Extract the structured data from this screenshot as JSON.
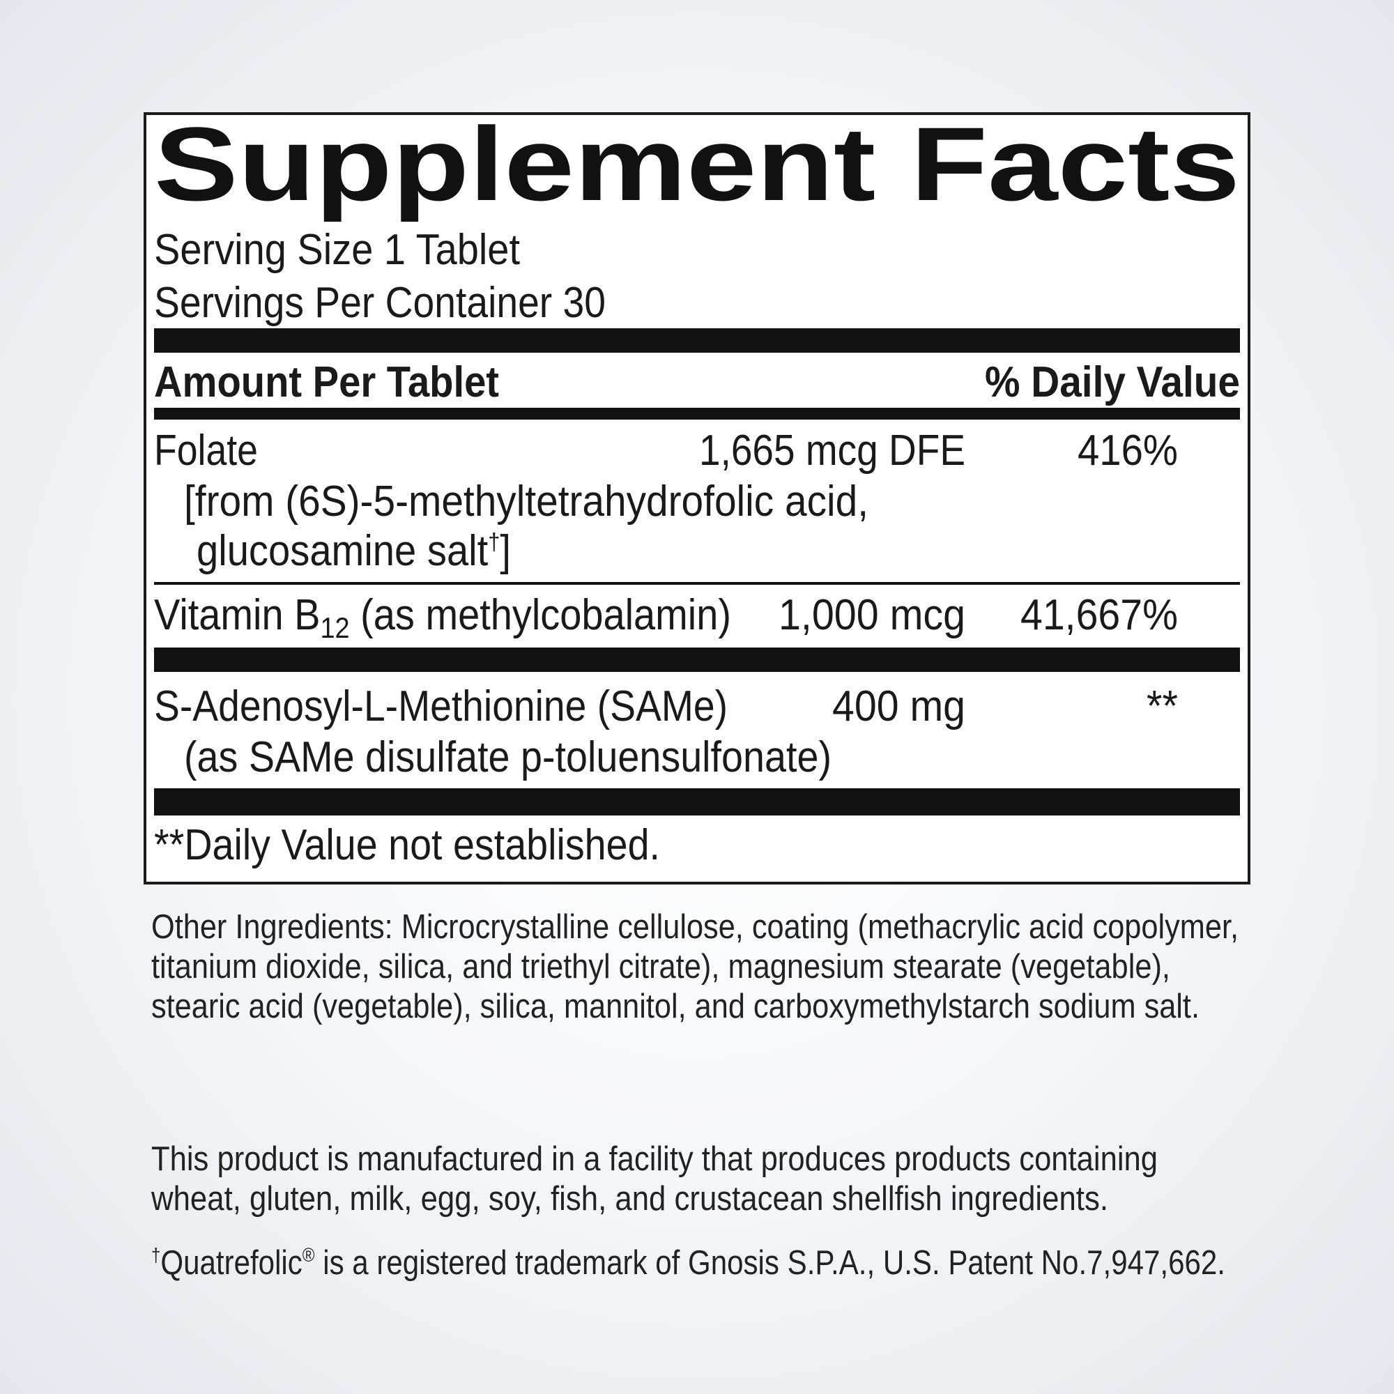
{
  "panel": {
    "title": "Supplement Facts",
    "serving_size": "Serving Size 1 Tablet",
    "servings_per_container": "Servings Per Container 30",
    "header_amount": "Amount Per Tablet",
    "header_dv": "% Daily Value",
    "rows": [
      {
        "name": "Folate",
        "detail_line1": "[from (6S)-5-methyltetrahydrofolic acid,",
        "detail_line2": "glucosamine salt",
        "detail_line2_mark": "†",
        "detail_line2_end": "]",
        "amount": "1,665 mcg DFE",
        "dv": "416%"
      },
      {
        "name_pre": "Vitamin B",
        "name_sub": "12",
        "name_post": " (as methylcobalamin)",
        "amount": "1,000 mcg",
        "dv": "41,667%"
      },
      {
        "name": "S-Adenosyl-L-Methionine (SAMe)",
        "detail_line1": "(as SAMe disulfate p-toluensulfonate)",
        "amount": "400 mg",
        "dv": "**"
      }
    ],
    "footnote": "**Daily Value not established."
  },
  "other_ingredients": [
    "Other Ingredients: Microcrystalline cellulose, coating (methacrylic acid copolymer,",
    "titanium dioxide, silica, and triethyl citrate), magnesium stearate (vegetable),",
    "stearic acid (vegetable), silica, mannitol, and carboxymethylstarch sodium salt."
  ],
  "allergen_statement": [
    "This product is manufactured in a facility that produces products containing",
    "wheat, gluten, milk, egg, soy, fish, and crustacean shellfish ingredients."
  ],
  "trademark": {
    "mark": "†",
    "brand": "Quatrefolic",
    "reg": "®",
    "rest": " is a registered trademark of Gnosis S.P.A., U.S. Patent No.7,947,662."
  }
}
